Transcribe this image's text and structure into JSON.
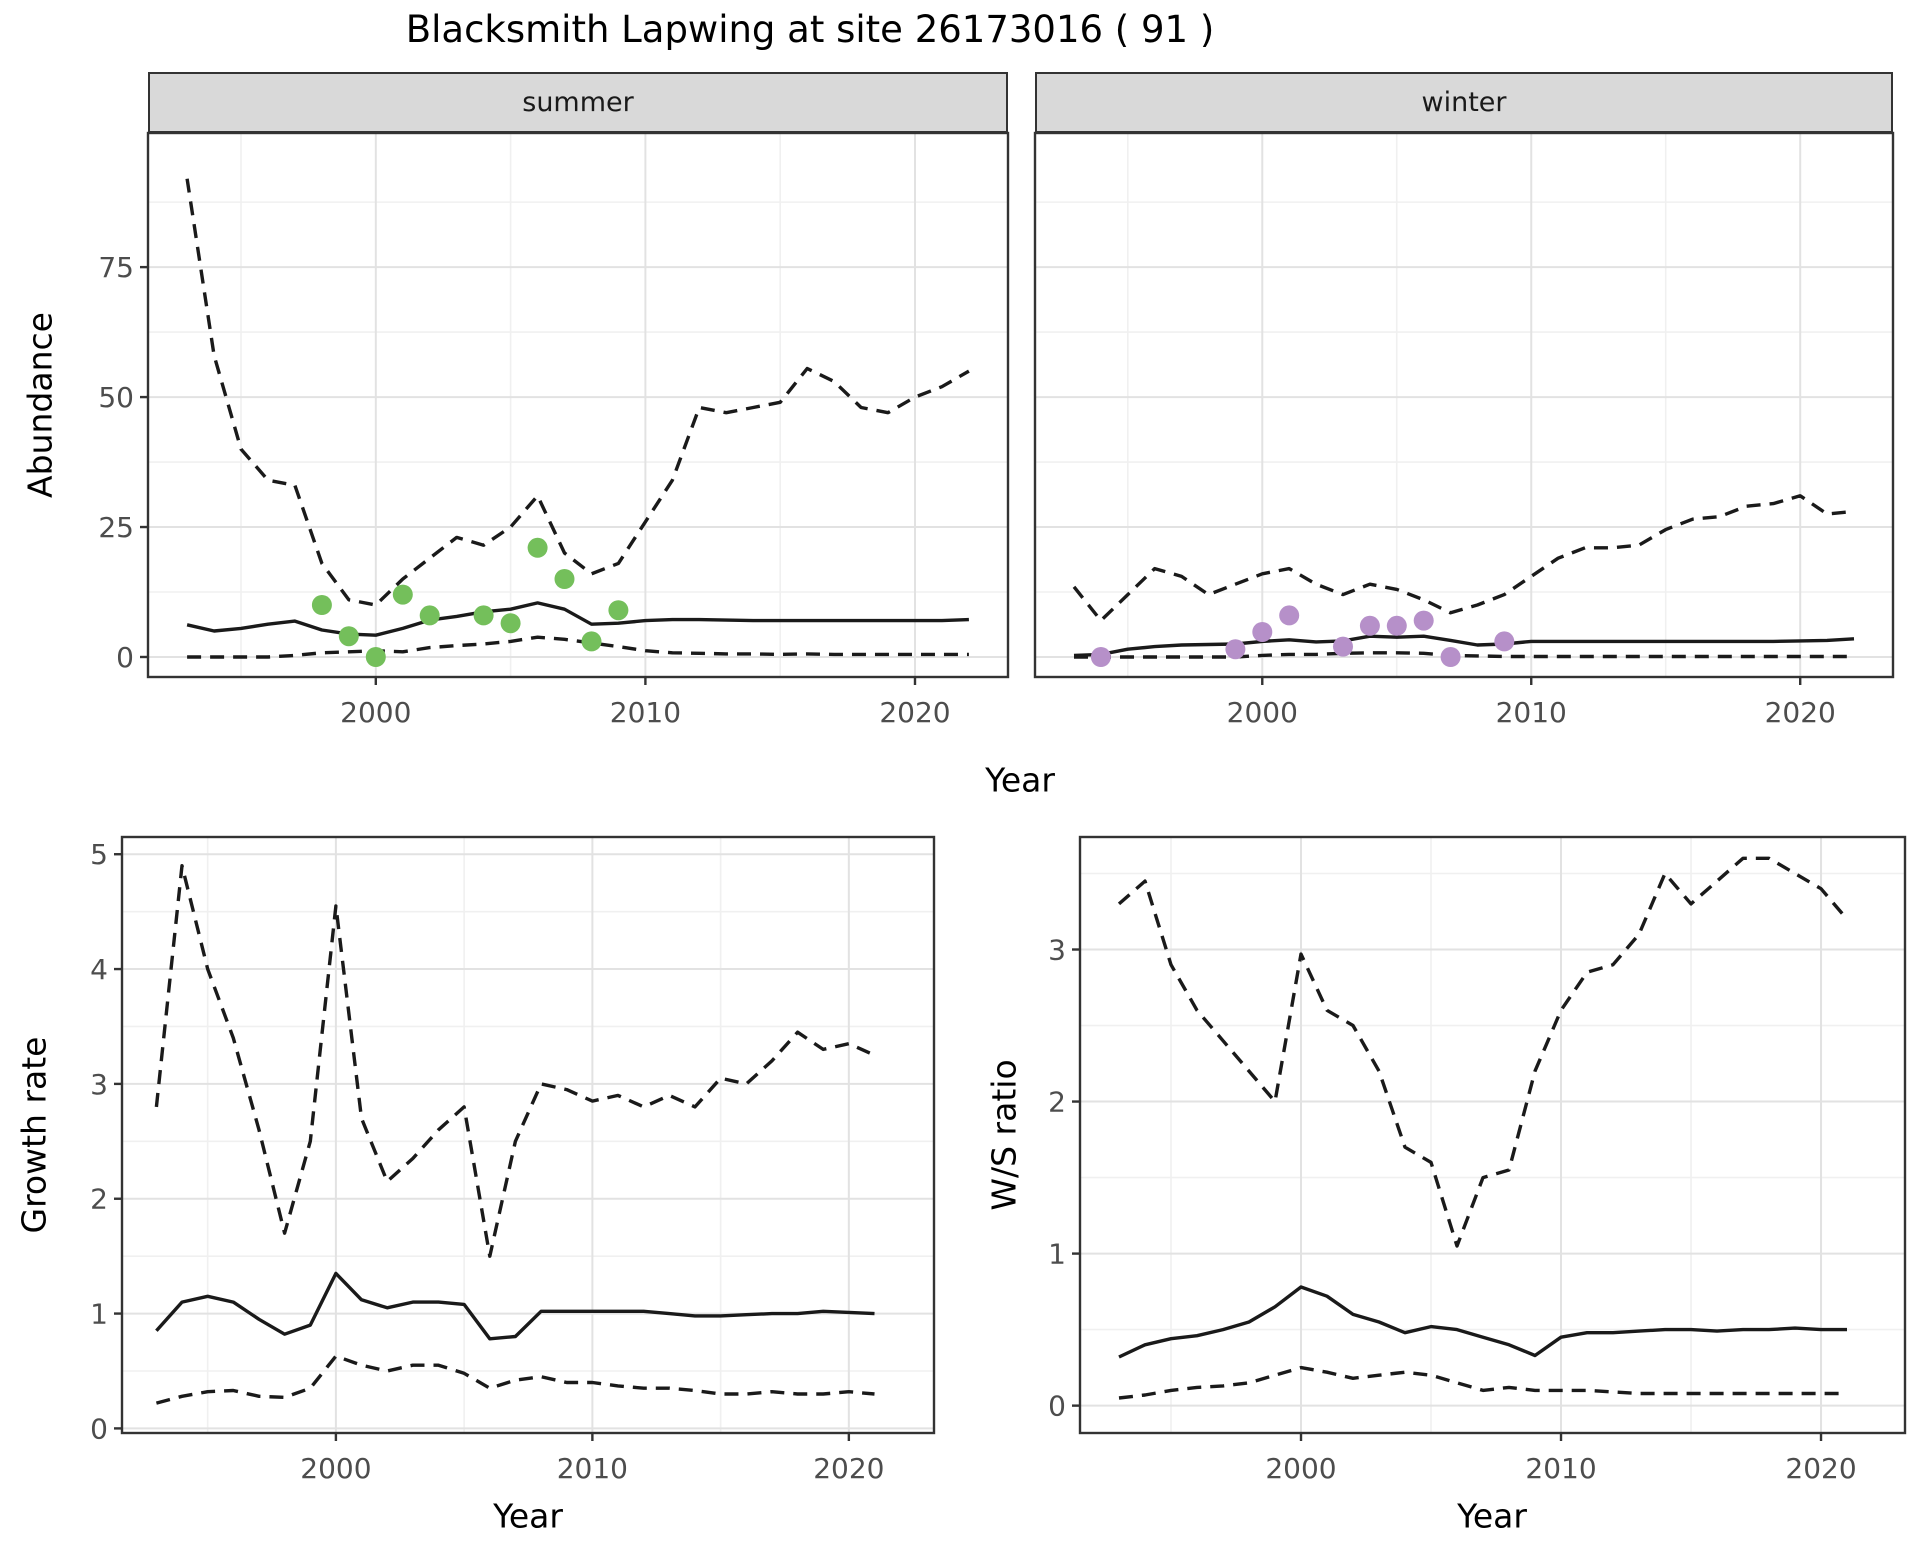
{
  "title": "Blacksmith Lapwing at site 26173016 ( 91 )",
  "colors": {
    "summer_point": "#74BF5B",
    "winter_point": "#B690C9",
    "line": "#1A1A1A",
    "grid_major": "#E2E2E2",
    "grid_minor": "#F0F0F0",
    "strip_fill": "#D9D9D9",
    "axis_text": "#4D4D4D",
    "panel_border": "#333333"
  },
  "top_row": {
    "ylabel": "Abundance",
    "xlabel": "Year"
  },
  "bottom_row": {
    "left_ylabel": "Growth rate",
    "right_ylabel": "W/S ratio",
    "left_xlabel": "Year",
    "right_xlabel": "Year"
  },
  "chart_data": [
    {
      "id": "summer",
      "type": "line",
      "facet": "summer",
      "ylabel": "Abundance",
      "xlabel": "Year",
      "xlim": [
        1991.55,
        2023.45
      ],
      "ylim": [
        -3.85,
        100.8
      ],
      "x_ticks": [
        2000,
        2010,
        2020
      ],
      "x_minor": [
        1995,
        2005,
        2015
      ],
      "y_ticks": [
        0,
        25,
        50,
        75
      ],
      "y_minor": [
        12.5,
        37.5,
        62.5,
        87.5
      ],
      "x": [
        1993,
        1994,
        1995,
        1996,
        1997,
        1998,
        1999,
        2000,
        2001,
        2002,
        2003,
        2004,
        2005,
        2006,
        2007,
        2008,
        2009,
        2010,
        2011,
        2012,
        2013,
        2014,
        2015,
        2016,
        2017,
        2018,
        2019,
        2020,
        2021,
        2022
      ],
      "series": [
        {
          "name": "upper_ci",
          "style": "dashed",
          "values": [
            92,
            58,
            40,
            34,
            33,
            18,
            11,
            10,
            15,
            19,
            23,
            21.5,
            25,
            31,
            20,
            16,
            18,
            26,
            34,
            48,
            47,
            48,
            49,
            55.5,
            53,
            48,
            47,
            50,
            52,
            55
          ]
        },
        {
          "name": "median",
          "style": "solid",
          "values": [
            6.2,
            5,
            5.5,
            6.3,
            6.9,
            5.2,
            4.4,
            4.2,
            5.5,
            7.1,
            7.8,
            8.7,
            9.2,
            10.4,
            9.2,
            6.3,
            6.5,
            7,
            7.2,
            7.2,
            7.1,
            7,
            7,
            7,
            7,
            7,
            7,
            7,
            7,
            7.2
          ]
        },
        {
          "name": "lower_ci",
          "style": "dashed",
          "values": [
            0,
            0,
            0,
            0,
            0.3,
            0.8,
            1,
            1.2,
            1,
            1.8,
            2.2,
            2.5,
            3,
            3.8,
            3.4,
            2.7,
            2,
            1.2,
            0.8,
            0.7,
            0.6,
            0.6,
            0.5,
            0.6,
            0.5,
            0.5,
            0.5,
            0.5,
            0.5,
            0.5
          ]
        }
      ],
      "points": {
        "color_key": "summer_point",
        "x": [
          1998,
          1999,
          2000,
          2001,
          2002,
          2004,
          2005,
          2006,
          2007,
          2008,
          2009
        ],
        "y": [
          10,
          4,
          0,
          12,
          8,
          8,
          6.5,
          21,
          15,
          3,
          9
        ]
      }
    },
    {
      "id": "winter",
      "type": "line",
      "facet": "winter",
      "ylabel": "Abundance",
      "xlabel": "Year",
      "xlim": [
        1991.55,
        2023.45
      ],
      "ylim": [
        -3.85,
        100.8
      ],
      "x_ticks": [
        2000,
        2010,
        2020
      ],
      "x_minor": [
        1995,
        2005,
        2015
      ],
      "y_ticks": [
        0,
        25,
        50,
        75
      ],
      "y_minor": [
        12.5,
        37.5,
        62.5,
        87.5
      ],
      "x": [
        1993,
        1994,
        1995,
        1996,
        1997,
        1998,
        1999,
        2000,
        2001,
        2002,
        2003,
        2004,
        2005,
        2006,
        2007,
        2008,
        2009,
        2010,
        2011,
        2012,
        2013,
        2014,
        2015,
        2016,
        2017,
        2018,
        2019,
        2020,
        2021,
        2022
      ],
      "series": [
        {
          "name": "upper_ci",
          "style": "dashed",
          "values": [
            13.5,
            7,
            12,
            17,
            15.5,
            12,
            14,
            16,
            17,
            14,
            12,
            14,
            13,
            11,
            8.5,
            10,
            12,
            15.5,
            19,
            21,
            21,
            21.5,
            24.5,
            26.5,
            27,
            29,
            29.5,
            31,
            27.5,
            28
          ]
        },
        {
          "name": "median",
          "style": "solid",
          "values": [
            0.3,
            0.5,
            1.5,
            2,
            2.3,
            2.4,
            2.5,
            3,
            3.3,
            2.9,
            3.1,
            4,
            3.8,
            4,
            3.2,
            2.3,
            2.5,
            3,
            3,
            3,
            3,
            3,
            3,
            3,
            3,
            3,
            3,
            3.1,
            3.2,
            3.5
          ]
        },
        {
          "name": "lower_ci",
          "style": "dashed",
          "values": [
            0,
            0,
            0,
            0,
            0,
            0,
            0,
            0.3,
            0.5,
            0.5,
            0.7,
            0.8,
            0.8,
            0.7,
            0.3,
            0.2,
            0.1,
            0.1,
            0.1,
            0.1,
            0.1,
            0.1,
            0.1,
            0.1,
            0.1,
            0.1,
            0.1,
            0.1,
            0.1,
            0.1
          ]
        }
      ],
      "points": {
        "color_key": "winter_point",
        "x": [
          1994,
          1999,
          2000,
          2001,
          2003,
          2004,
          2005,
          2006,
          2007,
          2009
        ],
        "y": [
          0,
          1.5,
          4.8,
          8,
          2,
          6,
          6,
          7,
          0,
          3
        ]
      }
    },
    {
      "id": "growth",
      "type": "line",
      "title": "Growth rate",
      "ylabel": "Growth rate",
      "xlabel": "Year",
      "xlim": [
        1991.66,
        2023.32
      ],
      "ylim": [
        -0.04,
        5.15
      ],
      "x_ticks": [
        2000,
        2010,
        2020
      ],
      "x_minor": [
        1995,
        2005,
        2015
      ],
      "y_ticks": [
        0,
        1,
        2,
        3,
        4,
        5
      ],
      "y_minor": [
        0.5,
        1.5,
        2.5,
        3.5,
        4.5
      ],
      "x": [
        1993,
        1994,
        1995,
        1996,
        1997,
        1998,
        1999,
        2000,
        2001,
        2002,
        2003,
        2004,
        2005,
        2006,
        2007,
        2008,
        2009,
        2010,
        2011,
        2012,
        2013,
        2014,
        2015,
        2016,
        2017,
        2018,
        2019,
        2020,
        2021
      ],
      "series": [
        {
          "name": "upper_ci",
          "style": "dashed",
          "values": [
            2.8,
            4.9,
            4.0,
            3.4,
            2.6,
            1.7,
            2.5,
            4.55,
            2.7,
            2.15,
            2.35,
            2.6,
            2.8,
            1.5,
            2.5,
            3.0,
            2.95,
            2.85,
            2.9,
            2.8,
            2.9,
            2.8,
            3.05,
            3.0,
            3.2,
            3.45,
            3.3,
            3.35,
            3.25
          ]
        },
        {
          "name": "median",
          "style": "solid",
          "values": [
            0.85,
            1.1,
            1.15,
            1.1,
            0.95,
            0.82,
            0.9,
            1.35,
            1.12,
            1.05,
            1.1,
            1.1,
            1.08,
            0.78,
            0.8,
            1.02,
            1.02,
            1.02,
            1.02,
            1.02,
            1.0,
            0.98,
            0.98,
            0.99,
            1.0,
            1.0,
            1.02,
            1.01,
            1.0
          ]
        },
        {
          "name": "lower_ci",
          "style": "dashed",
          "values": [
            0.22,
            0.28,
            0.32,
            0.33,
            0.28,
            0.27,
            0.35,
            0.63,
            0.55,
            0.5,
            0.55,
            0.55,
            0.48,
            0.35,
            0.42,
            0.45,
            0.4,
            0.4,
            0.37,
            0.35,
            0.35,
            0.33,
            0.3,
            0.3,
            0.32,
            0.3,
            0.3,
            0.32,
            0.3
          ]
        }
      ],
      "points": null
    },
    {
      "id": "ws",
      "type": "line",
      "title": "W/S ratio",
      "ylabel": "W/S ratio",
      "xlabel": "Year",
      "xlim": [
        1991.5,
        2023.23
      ],
      "ylim": [
        -0.18,
        3.74
      ],
      "x_ticks": [
        2000,
        2010,
        2020
      ],
      "x_minor": [
        1995,
        2005,
        2015
      ],
      "y_ticks": [
        0,
        1,
        2,
        3
      ],
      "y_minor": [
        0.5,
        1.5,
        2.5,
        3.5
      ],
      "x": [
        1993,
        1994,
        1995,
        1996,
        1997,
        1998,
        1999,
        2000,
        2001,
        2002,
        2003,
        2004,
        2005,
        2006,
        2007,
        2008,
        2009,
        2010,
        2011,
        2012,
        2013,
        2014,
        2015,
        2016,
        2017,
        2018,
        2019,
        2020,
        2021
      ],
      "series": [
        {
          "name": "upper_ci",
          "style": "dashed",
          "values": [
            3.3,
            3.45,
            2.9,
            2.6,
            2.4,
            2.2,
            2.0,
            2.97,
            2.6,
            2.5,
            2.2,
            1.7,
            1.6,
            1.05,
            1.5,
            1.55,
            2.2,
            2.6,
            2.85,
            2.9,
            3.1,
            3.5,
            3.3,
            3.45,
            3.6,
            3.6,
            3.5,
            3.4,
            3.2
          ]
        },
        {
          "name": "median",
          "style": "solid",
          "values": [
            0.32,
            0.4,
            0.44,
            0.46,
            0.5,
            0.55,
            0.65,
            0.78,
            0.72,
            0.6,
            0.55,
            0.48,
            0.52,
            0.5,
            0.45,
            0.4,
            0.33,
            0.45,
            0.48,
            0.48,
            0.49,
            0.5,
            0.5,
            0.49,
            0.5,
            0.5,
            0.51,
            0.5,
            0.5
          ]
        },
        {
          "name": "lower_ci",
          "style": "dashed",
          "values": [
            0.05,
            0.07,
            0.1,
            0.12,
            0.13,
            0.15,
            0.2,
            0.25,
            0.22,
            0.18,
            0.2,
            0.22,
            0.2,
            0.15,
            0.1,
            0.12,
            0.1,
            0.1,
            0.1,
            0.09,
            0.08,
            0.08,
            0.08,
            0.08,
            0.08,
            0.08,
            0.08,
            0.08,
            0.08
          ]
        }
      ],
      "points": null
    }
  ]
}
